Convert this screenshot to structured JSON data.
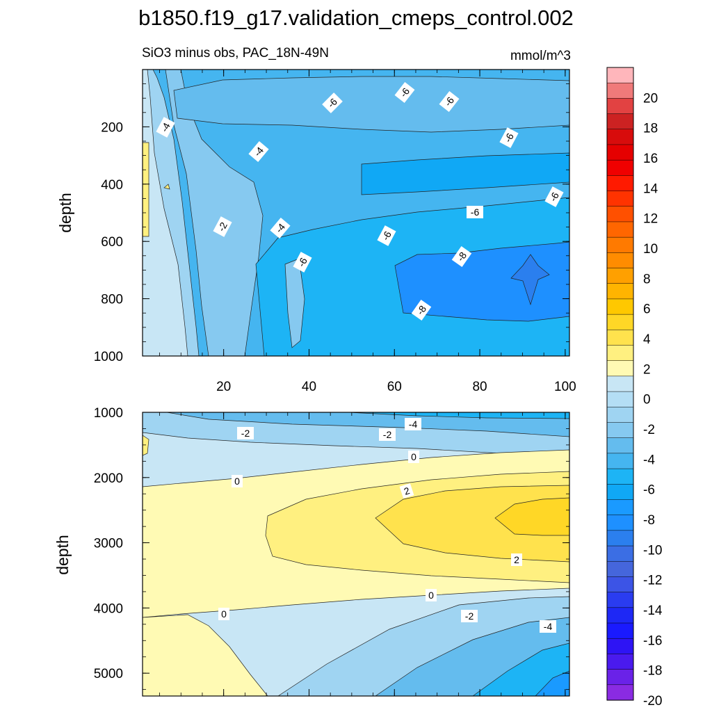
{
  "chart_data": {
    "type": "contour",
    "title": "b1850.f19_g17.validation_cmeps_control.002",
    "subtitle": "SiO3 minus obs, PAC_18N-49N",
    "units": "mmol/m^3",
    "x_range": [
      1,
      101
    ],
    "x_ticks": [
      "20",
      "40",
      "60",
      "80",
      "100"
    ],
    "panels": [
      {
        "name": "upper",
        "ylabel": "depth",
        "ylim": [
          0,
          1000
        ],
        "y_ticks": [
          "200",
          "400",
          "600",
          "800",
          "1000"
        ],
        "contour_labels": [
          "-4",
          "-4",
          "-2",
          "-4",
          "-6",
          "-6",
          "-6",
          "-6",
          "-6",
          "-6",
          "-6",
          "-8",
          "-8",
          "-6"
        ]
      },
      {
        "name": "lower",
        "ylabel": "depth",
        "ylim": [
          1000,
          5350
        ],
        "y_ticks": [
          "1000",
          "2000",
          "3000",
          "4000",
          "5000"
        ],
        "contour_labels": [
          "-2",
          "-2",
          "-4",
          "0",
          "0",
          "2",
          "2",
          "0",
          "0",
          "-2",
          "-4"
        ]
      }
    ],
    "colorbar": {
      "levels": [
        -20,
        -19,
        -18,
        -17,
        -16,
        -15,
        -14,
        -13,
        -12,
        -11,
        -10,
        -9,
        -8,
        -7,
        -6,
        -5,
        -4,
        -3,
        -2,
        -1,
        0,
        1,
        2,
        3,
        4,
        5,
        6,
        7,
        8,
        9,
        10,
        11,
        12,
        13,
        14,
        15,
        16,
        17,
        18,
        19,
        20,
        21
      ],
      "tick_labels": [
        "20",
        "18",
        "16",
        "14",
        "12",
        "10",
        "8",
        "6",
        "4",
        "2",
        "0",
        "-2",
        "-4",
        "-6",
        "-8",
        "-10",
        "-12",
        "-14",
        "-16",
        "-18",
        "-20"
      ],
      "colors": [
        "#ffb6bb",
        "#f07a7a",
        "#e24242",
        "#cc2222",
        "#d80c0c",
        "#e50000",
        "#f00000",
        "#ff1a00",
        "#ff3300",
        "#ff5000",
        "#ff6600",
        "#ff7a00",
        "#ff8c00",
        "#ffa000",
        "#ffb400",
        "#ffc800",
        "#ffd726",
        "#ffe24d",
        "#fff080",
        "#fffab4",
        "#c8e6f5",
        "#b4def5",
        "#9fd4f2",
        "#86c9f0",
        "#64bcee",
        "#45b5f0",
        "#1db4f5",
        "#10a8f5",
        "#1a9aff",
        "#1e90ff",
        "#2b7fee",
        "#3b6ee4",
        "#4566dc",
        "#3c54e6",
        "#2a3cf0",
        "#1e28f5",
        "#1a1aff",
        "#2e14f5",
        "#4a1aee",
        "#6a22e8",
        "#8a2be2"
      ]
    }
  }
}
